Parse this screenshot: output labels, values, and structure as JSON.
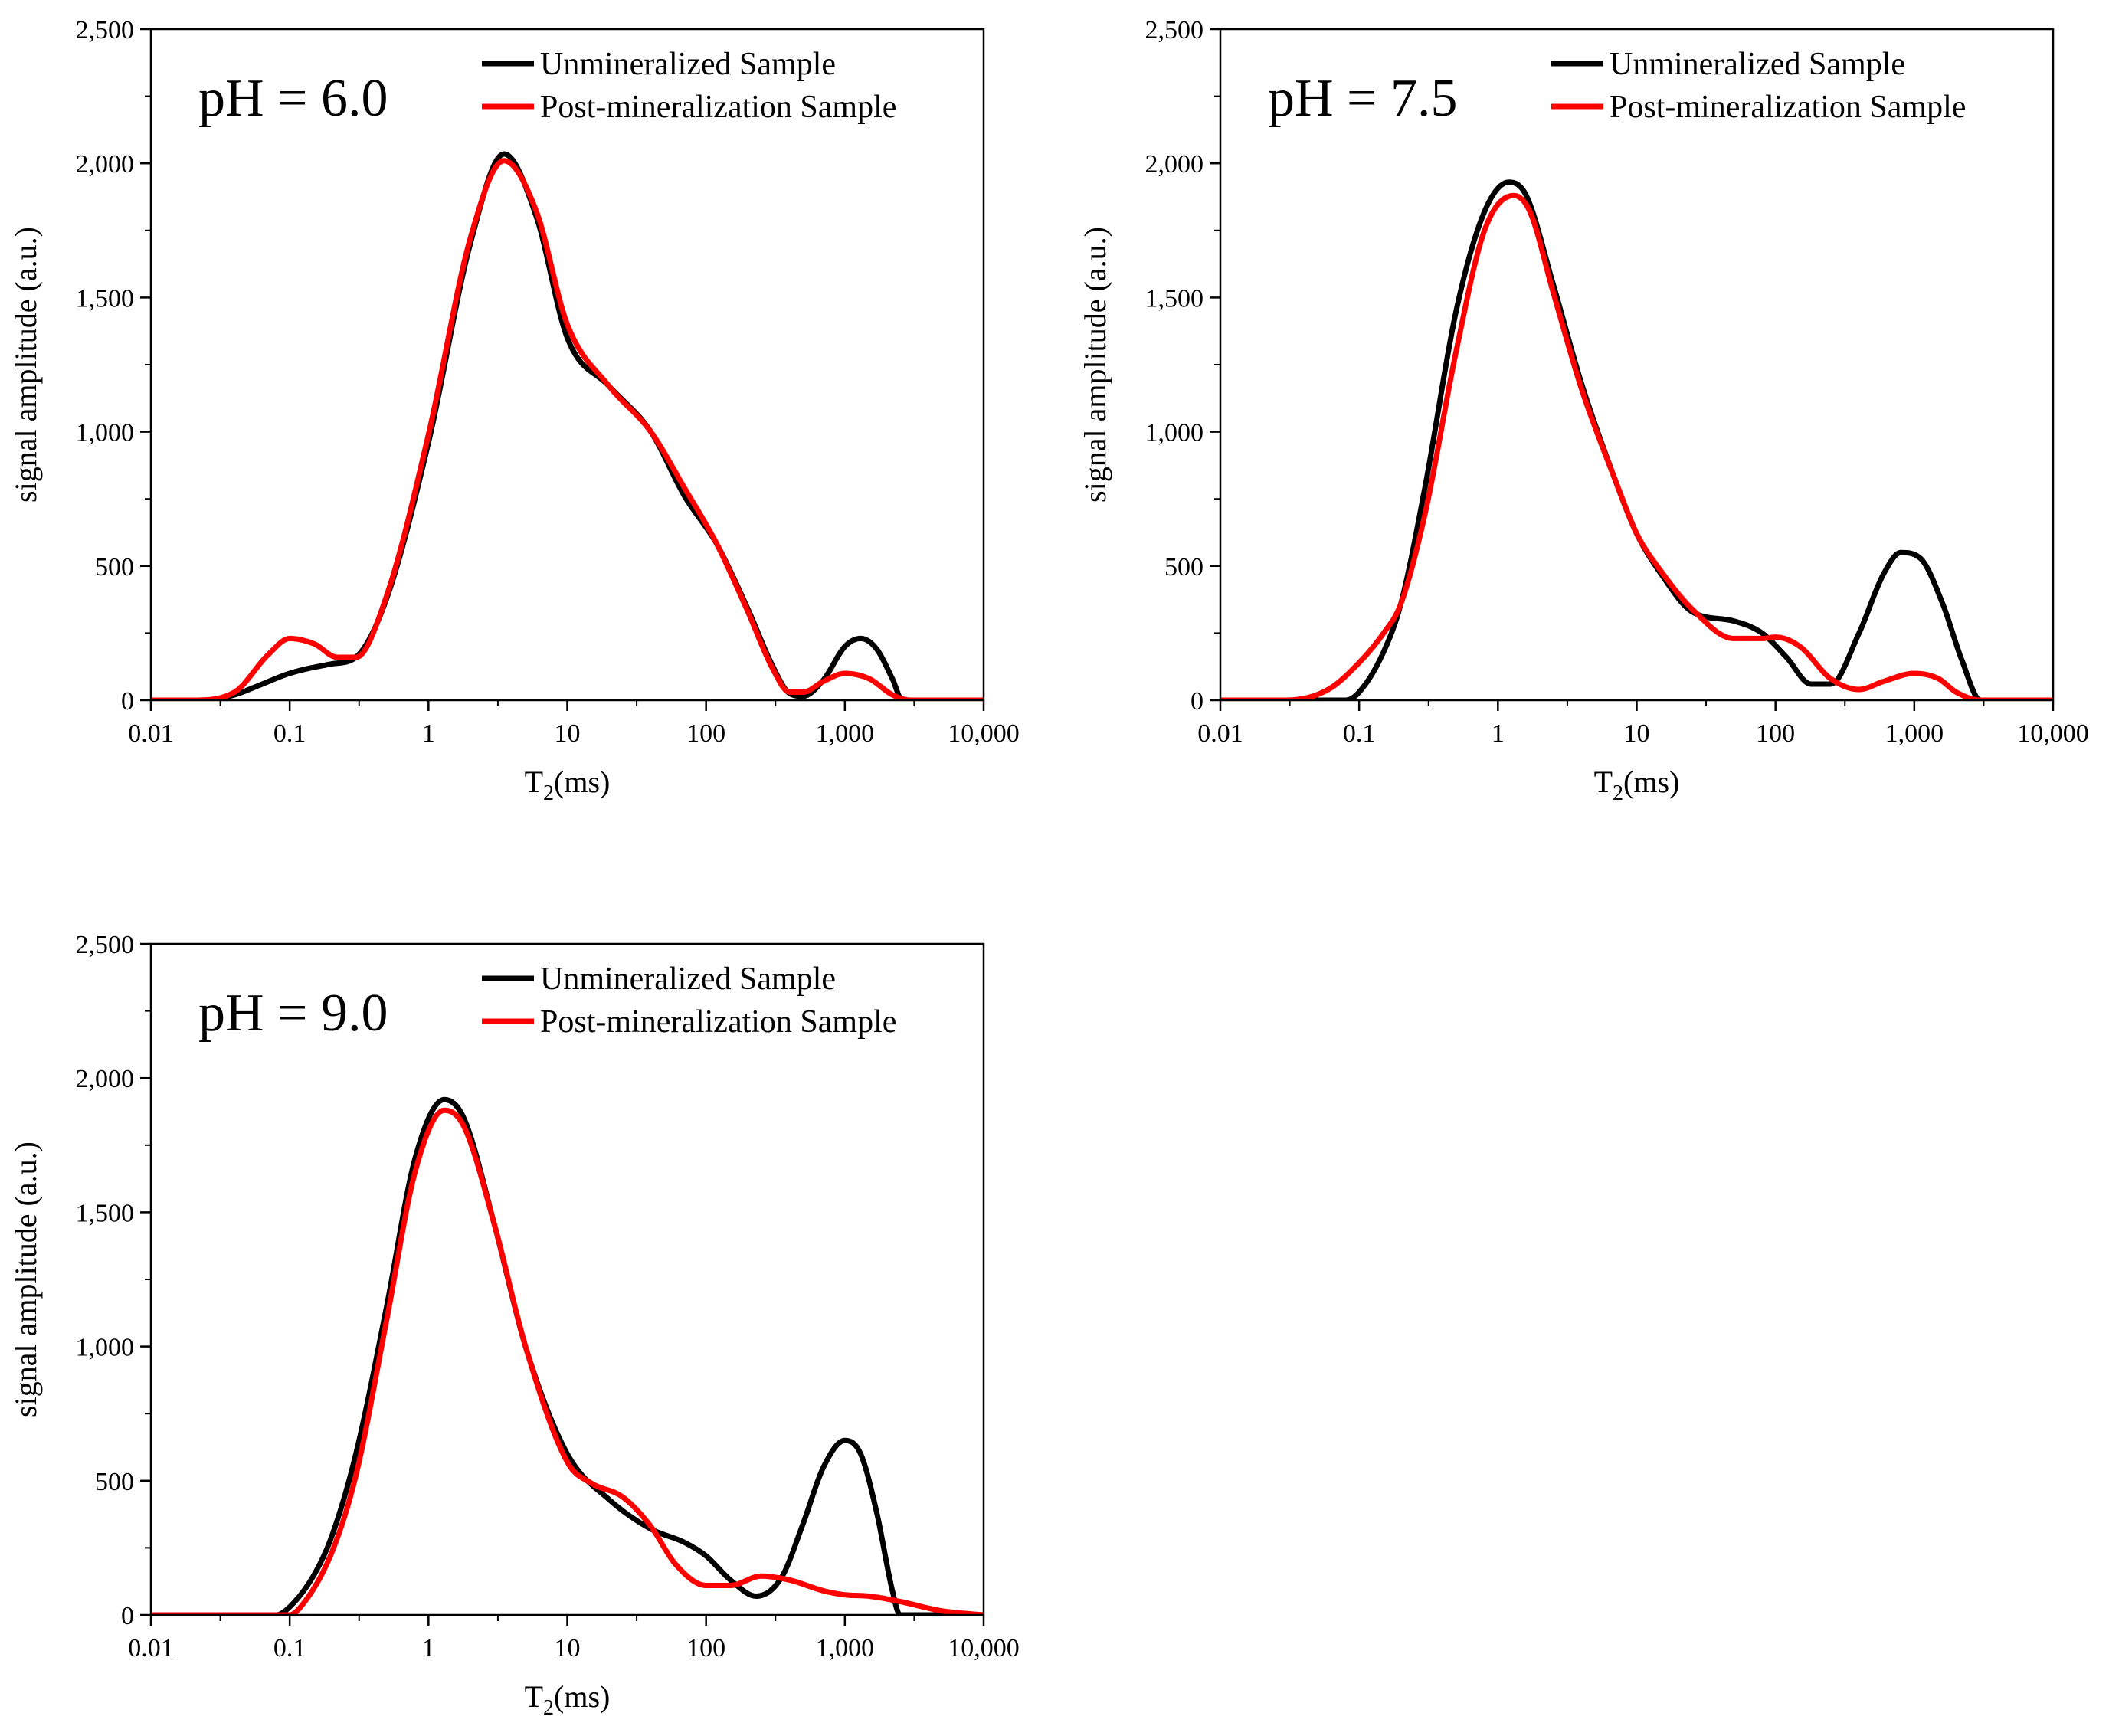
{
  "figure": {
    "panels": [
      {
        "ph_label": "pH = 6.0"
      },
      {
        "ph_label": "pH = 7.5"
      },
      {
        "ph_label": "pH = 9.0"
      }
    ]
  },
  "colors": {
    "unmineralized": "#000000",
    "post_mineralization": "#ff0000",
    "axis": "#000000",
    "background": "#ffffff"
  },
  "chart_data": [
    {
      "type": "line",
      "title": "pH = 6.0",
      "xlabel": "T2(ms)",
      "ylabel": "signal amplitude (a.u.)",
      "x_scale": "log",
      "xlim": [
        0.01,
        10000
      ],
      "ylim": [
        0,
        2500
      ],
      "x_ticks": [
        0.01,
        0.1,
        1,
        10,
        100,
        1000,
        10000
      ],
      "x_tick_labels": [
        "0.01",
        "0.1",
        "1",
        "10",
        "100",
        "1,000",
        "10,000"
      ],
      "y_ticks": [
        0,
        500,
        1000,
        1500,
        2000,
        2500
      ],
      "y_tick_labels": [
        "0",
        "500",
        "1,000",
        "1,500",
        "2,000",
        "2,500"
      ],
      "legend_position": "top-right",
      "series": [
        {
          "name": "Unmineralized Sample",
          "color": "#000000",
          "x": [
            0.01,
            0.025,
            0.04,
            0.06,
            0.1,
            0.2,
            0.3,
            0.5,
            1,
            2,
            3.5,
            6,
            10,
            20,
            40,
            70,
            120,
            200,
            300,
            400,
            500,
            700,
            1000,
            1300,
            1700,
            2200,
            2600,
            3000,
            10000
          ],
          "y": [
            0,
            0,
            20,
            55,
            100,
            135,
            160,
            380,
            960,
            1700,
            2035,
            1800,
            1350,
            1170,
            1000,
            760,
            580,
            340,
            130,
            25,
            15,
            75,
            200,
            230,
            190,
            80,
            0,
            0,
            0
          ]
        },
        {
          "name": "Post-mineralization Sample",
          "color": "#ff0000",
          "x": [
            0.01,
            0.02,
            0.04,
            0.07,
            0.1,
            0.15,
            0.22,
            0.3,
            0.5,
            1,
            2,
            3.5,
            6,
            10,
            20,
            40,
            70,
            120,
            200,
            300,
            400,
            500,
            700,
            1000,
            1500,
            2200,
            3000,
            10000
          ],
          "y": [
            0,
            0,
            30,
            170,
            230,
            210,
            160,
            160,
            390,
            990,
            1720,
            2010,
            1820,
            1400,
            1170,
            1000,
            790,
            580,
            330,
            120,
            30,
            30,
            70,
            100,
            80,
            20,
            0,
            0
          ]
        }
      ]
    },
    {
      "type": "line",
      "title": "pH = 7.5",
      "xlabel": "T2(ms)",
      "ylabel": "signal amplitude (a.u.)",
      "x_scale": "log",
      "xlim": [
        0.01,
        10000
      ],
      "ylim": [
        0,
        2500
      ],
      "x_ticks": [
        0.01,
        0.1,
        1,
        10,
        100,
        1000,
        10000
      ],
      "x_tick_labels": [
        "0.01",
        "0.1",
        "1",
        "10",
        "100",
        "1,000",
        "10,000"
      ],
      "y_ticks": [
        0,
        500,
        1000,
        1500,
        2000,
        2500
      ],
      "y_tick_labels": [
        "0",
        "500",
        "1,000",
        "1,500",
        "2,000",
        "2,500"
      ],
      "legend_position": "top-right",
      "series": [
        {
          "name": "Unmineralized Sample",
          "color": "#000000",
          "x": [
            0.01,
            0.08,
            0.1,
            0.15,
            0.2,
            0.3,
            0.5,
            0.8,
            1.2,
            1.6,
            2.5,
            4,
            7,
            10,
            15,
            25,
            50,
            80,
            120,
            180,
            250,
            400,
            600,
            800,
            1100,
            1600,
            2200,
            3000,
            10000
          ],
          "y": [
            0,
            0,
            30,
            180,
            360,
            800,
            1450,
            1820,
            1930,
            1880,
            1550,
            1180,
            820,
            620,
            470,
            330,
            295,
            250,
            160,
            60,
            60,
            250,
            470,
            550,
            530,
            360,
            150,
            0,
            0
          ]
        },
        {
          "name": "Post-mineralization Sample",
          "color": "#ff0000",
          "x": [
            0.01,
            0.03,
            0.06,
            0.1,
            0.15,
            0.2,
            0.3,
            0.5,
            0.8,
            1.3,
            1.7,
            2.5,
            4,
            7,
            10,
            15,
            25,
            50,
            80,
            100,
            150,
            250,
            400,
            600,
            1000,
            1500,
            2000,
            3000,
            10000
          ],
          "y": [
            0,
            0,
            40,
            140,
            250,
            360,
            700,
            1300,
            1750,
            1880,
            1820,
            1520,
            1160,
            820,
            620,
            480,
            340,
            230,
            230,
            235,
            200,
            80,
            40,
            70,
            100,
            80,
            30,
            0,
            0
          ]
        }
      ]
    },
    {
      "type": "line",
      "title": "pH = 9.0",
      "xlabel": "T2(ms)",
      "ylabel": "signal amplitude (a.u.)",
      "x_scale": "log",
      "xlim": [
        0.01,
        10000
      ],
      "ylim": [
        0,
        2500
      ],
      "x_ticks": [
        0.01,
        0.1,
        1,
        10,
        100,
        1000,
        10000
      ],
      "x_tick_labels": [
        "0.01",
        "0.1",
        "1",
        "10",
        "100",
        "1,000",
        "10,000"
      ],
      "y_ticks": [
        0,
        500,
        1000,
        1500,
        2000,
        2500
      ],
      "y_tick_labels": [
        "0",
        "500",
        "1,000",
        "1,500",
        "2,000",
        "2,500"
      ],
      "legend_position": "top-right",
      "series": [
        {
          "name": "Unmineralized Sample",
          "color": "#000000",
          "x": [
            0.01,
            0.08,
            0.1,
            0.15,
            0.2,
            0.3,
            0.5,
            0.8,
            1.3,
            1.8,
            3,
            5,
            10,
            20,
            40,
            70,
            100,
            150,
            230,
            350,
            500,
            700,
            1000,
            1300,
            1700,
            2200,
            2500,
            10000
          ],
          "y": [
            0,
            0,
            30,
            150,
            290,
            600,
            1150,
            1700,
            1920,
            1850,
            1450,
            1000,
            600,
            430,
            320,
            270,
            220,
            130,
            70,
            140,
            340,
            550,
            650,
            600,
            380,
            90,
            0,
            0
          ]
        },
        {
          "name": "Post-mineralization Sample",
          "color": "#ff0000",
          "x": [
            0.01,
            0.1,
            0.12,
            0.2,
            0.3,
            0.5,
            0.8,
            1.3,
            1.8,
            3,
            5,
            10,
            15,
            25,
            40,
            60,
            100,
            150,
            250,
            400,
            700,
            1000,
            1500,
            2500,
            5000,
            10000
          ],
          "y": [
            0,
            0,
            30,
            230,
            520,
            1100,
            1650,
            1880,
            1820,
            1450,
            1000,
            570,
            490,
            440,
            330,
            190,
            110,
            110,
            145,
            130,
            90,
            75,
            70,
            50,
            15,
            0
          ]
        }
      ]
    }
  ]
}
